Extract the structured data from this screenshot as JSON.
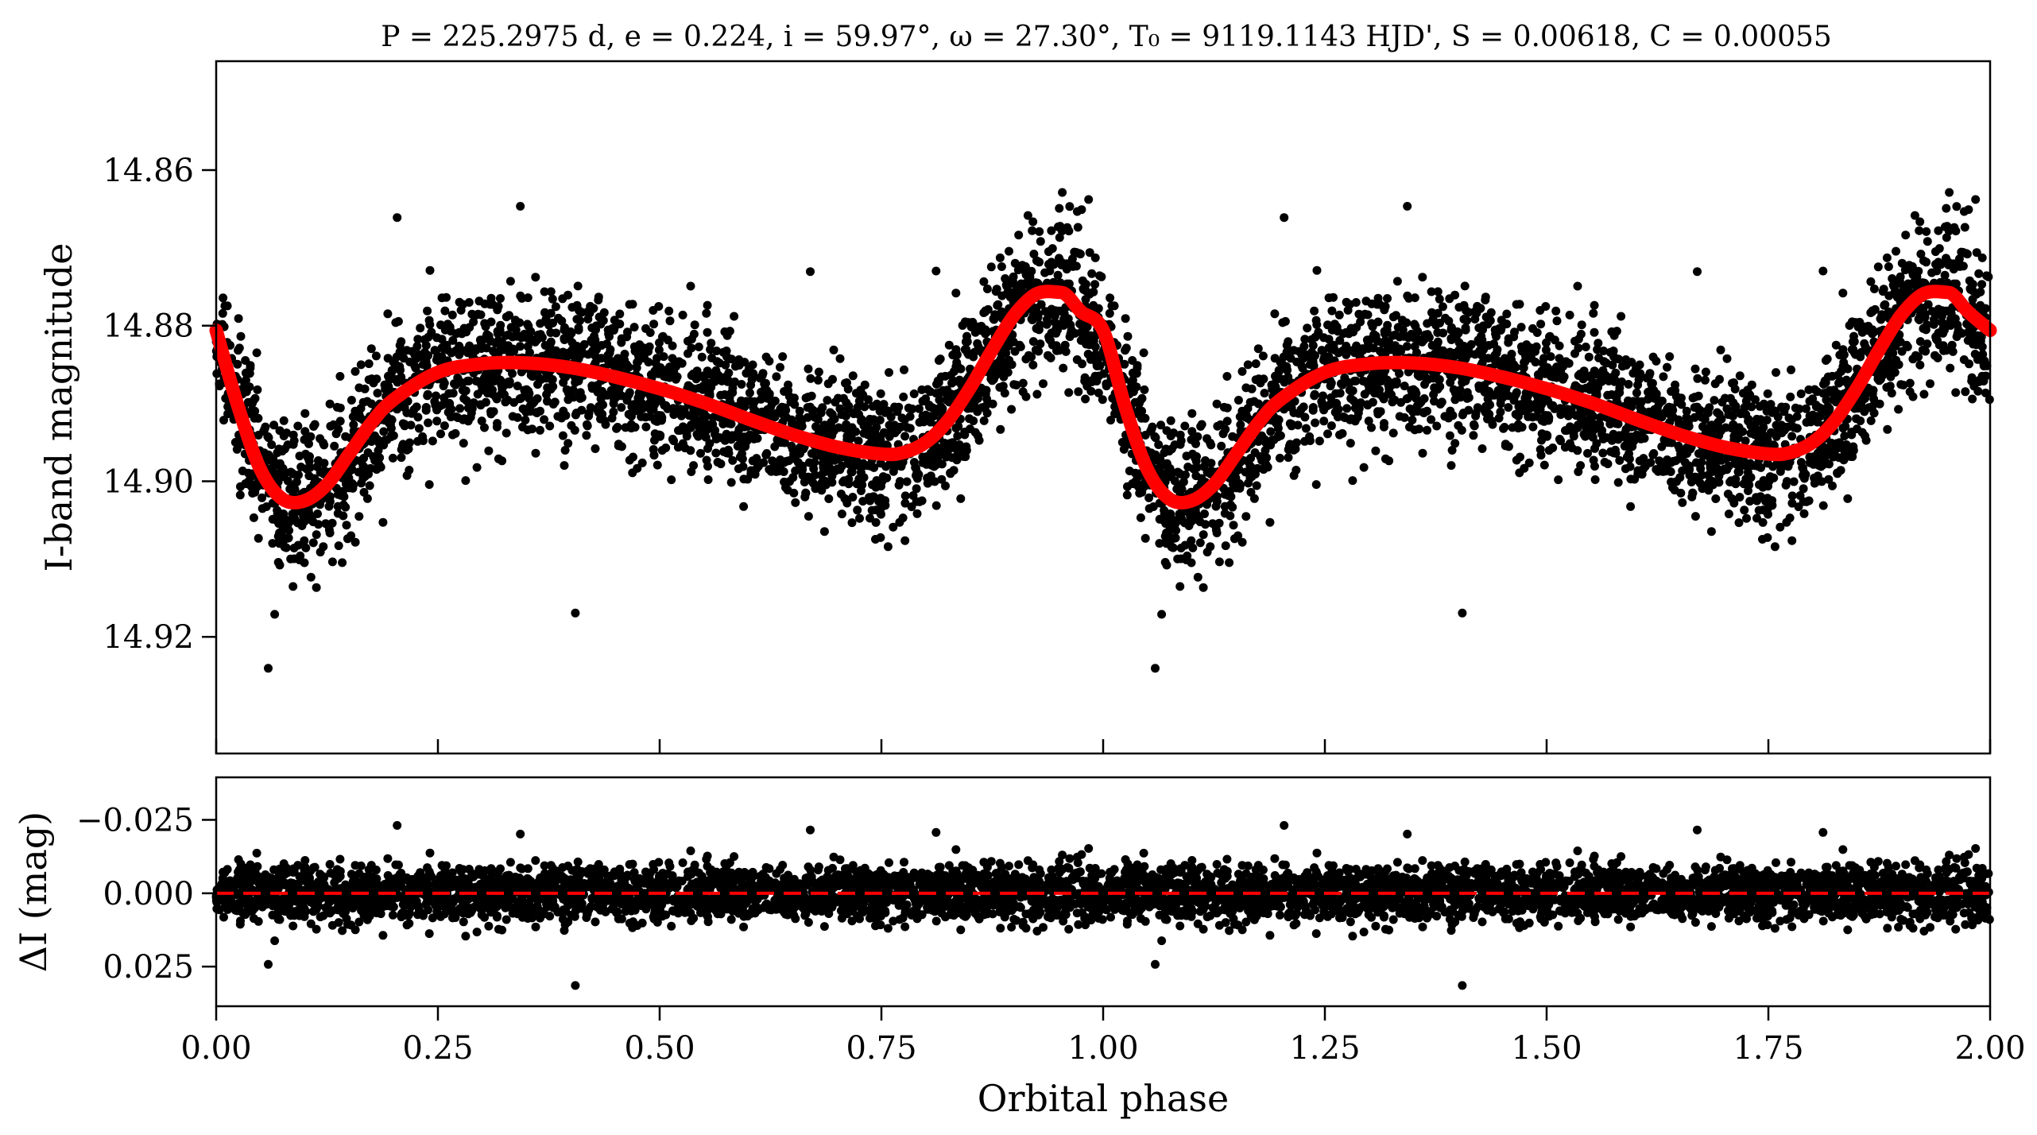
{
  "colors": {
    "points": "#000000",
    "model": "#ff0000",
    "zero_line": "#ff0000",
    "background": "#ffffff"
  },
  "chart_data": [
    {
      "type": "scatter",
      "panel": "top",
      "title": "P = 225.2975 d, e = 0.224, i = 59.97°, ω = 27.30°, T₀ = 9119.1143 HJD', S = 0.00618, C = 0.00055",
      "xlabel": "",
      "ylabel": "I-band magnitude",
      "xlim": [
        0.0,
        2.0
      ],
      "ylim": [
        14.935,
        14.846
      ],
      "y_inverted": true,
      "xticks": [
        0.0,
        0.25,
        0.5,
        0.75,
        1.0,
        1.25,
        1.5,
        1.75,
        2.0
      ],
      "yticks": [
        14.86,
        14.88,
        14.9,
        14.92
      ],
      "ytick_labels": [
        "14.86",
        "14.88",
        "14.90",
        "14.92"
      ],
      "grid": false,
      "legend": "none",
      "series": [
        {
          "kind": "points",
          "description": "phase-folded photometry, repeated over two cycles",
          "count_per_cycle": 2600,
          "scatter_sigma_mag": 0.0047
        },
        {
          "kind": "model",
          "x": [
            0.0,
            0.025,
            0.05,
            0.075,
            0.1,
            0.125,
            0.15,
            0.175,
            0.2,
            0.25,
            0.3,
            0.35,
            0.4,
            0.45,
            0.5,
            0.55,
            0.6,
            0.65,
            0.7,
            0.75,
            0.775,
            0.8,
            0.825,
            0.85,
            0.875,
            0.9,
            0.925,
            0.95,
            0.96,
            0.975,
            1.0,
            1.025,
            1.05,
            1.075,
            1.1,
            1.125,
            1.15,
            1.175,
            1.2,
            1.25,
            1.3,
            1.35,
            1.4,
            1.45,
            1.5,
            1.55,
            1.6,
            1.65,
            1.7,
            1.75,
            1.775,
            1.8,
            1.825,
            1.85,
            1.875,
            1.9,
            1.925,
            1.95,
            1.96,
            1.975,
            2.0
          ],
          "y": [
            14.8806,
            14.8905,
            14.8985,
            14.9023,
            14.9025,
            14.9004,
            14.8965,
            14.8925,
            14.8895,
            14.886,
            14.8849,
            14.8848,
            14.8854,
            14.8866,
            14.8881,
            14.8899,
            14.892,
            14.894,
            14.8956,
            14.8965,
            14.8963,
            14.895,
            14.8922,
            14.888,
            14.8831,
            14.8786,
            14.8759,
            14.8757,
            14.8762,
            14.8782,
            14.8806,
            14.8905,
            14.8985,
            14.9023,
            14.9025,
            14.9004,
            14.8965,
            14.8925,
            14.8895,
            14.886,
            14.8849,
            14.8848,
            14.8854,
            14.8866,
            14.8881,
            14.8899,
            14.892,
            14.894,
            14.8956,
            14.8965,
            14.8963,
            14.895,
            14.8922,
            14.888,
            14.8831,
            14.8786,
            14.8759,
            14.8757,
            14.8762,
            14.8782,
            14.8806
          ]
        }
      ]
    },
    {
      "type": "scatter",
      "panel": "bottom",
      "title": "",
      "xlabel": "Orbital phase",
      "ylabel": "ΔI (mag)",
      "xlim": [
        0.0,
        2.0
      ],
      "ylim": [
        0.0385,
        -0.0395
      ],
      "y_inverted": true,
      "xticks": [
        0.0,
        0.25,
        0.5,
        0.75,
        1.0,
        1.25,
        1.5,
        1.75,
        2.0
      ],
      "xtick_labels": [
        "0.00",
        "0.25",
        "0.50",
        "0.75",
        "1.00",
        "1.25",
        "1.50",
        "1.75",
        "2.00"
      ],
      "yticks": [
        -0.025,
        0.0,
        0.025
      ],
      "ytick_labels": [
        "−0.025",
        "0.000",
        "0.025"
      ],
      "grid": false,
      "legend": "none",
      "series": [
        {
          "kind": "points",
          "description": "residuals (data − model)",
          "scatter_sigma_mag": 0.0047
        },
        {
          "kind": "zero-line",
          "y": 0.0,
          "style": "dashed"
        }
      ]
    }
  ]
}
